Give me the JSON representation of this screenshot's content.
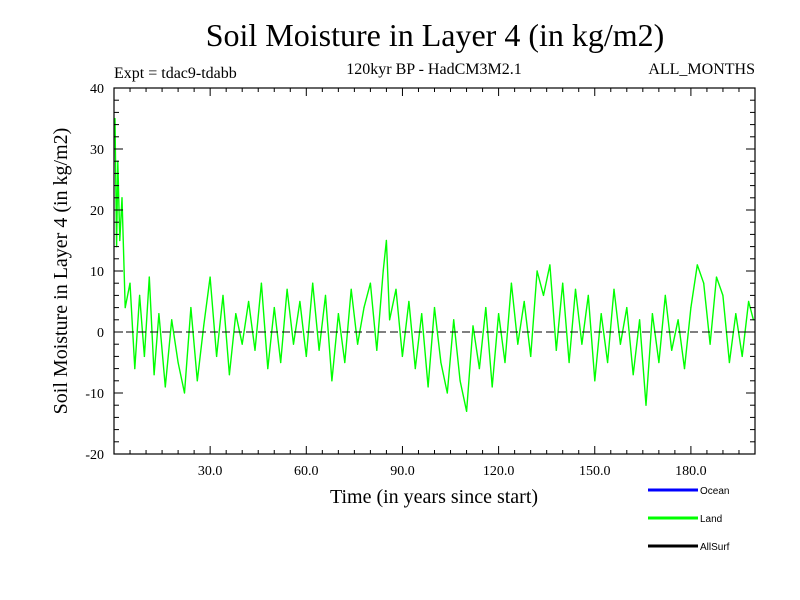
{
  "chart_data": {
    "type": "line",
    "title": "Soil Moisture in Layer 4 (in kg/m2)",
    "subtitle_left": "Expt = tdac9-tdabb",
    "subtitle_center": "120kyr BP - HadCM3M2.1",
    "subtitle_right": "ALL_MONTHS",
    "xlabel": "Time (in years since start)",
    "ylabel": "Soil Moisture in Layer 4 (in kg/m2)",
    "xlim": [
      0,
      200
    ],
    "ylim": [
      -20,
      40
    ],
    "x_ticks": [
      30,
      60,
      90,
      120,
      150,
      180
    ],
    "x_tick_labels": [
      "30.0",
      "60.0",
      "90.0",
      "120.0",
      "150.0",
      "180.0"
    ],
    "y_ticks": [
      -20,
      -10,
      0,
      10,
      20,
      30,
      40
    ],
    "y_tick_labels": [
      "-20",
      "-10",
      "0",
      "10",
      "20",
      "30",
      "40"
    ],
    "zero_line": "dashed",
    "legend": [
      {
        "name": "Ocean",
        "color": "#0000ff"
      },
      {
        "name": "Land",
        "color": "#00ff00"
      },
      {
        "name": "AllSurf",
        "color": "#000000"
      }
    ],
    "legend_position": "bottom-right",
    "series": [
      {
        "name": "Land",
        "color": "#00ff00",
        "x": [
          0.3,
          0.8,
          1.2,
          1.8,
          2.5,
          3.5,
          5,
          6.5,
          8,
          9.5,
          11,
          12.5,
          14,
          16,
          18,
          20,
          22,
          24,
          26,
          28,
          30,
          32,
          34,
          36,
          38,
          40,
          42,
          44,
          46,
          48,
          50,
          52,
          54,
          56,
          58,
          60,
          62,
          64,
          66,
          68,
          70,
          72,
          74,
          76,
          78,
          80,
          82,
          84,
          85,
          86,
          88,
          90,
          92,
          94,
          96,
          98,
          100,
          102,
          104,
          106,
          108,
          110,
          112,
          114,
          116,
          118,
          120,
          122,
          124,
          126,
          128,
          130,
          132,
          134,
          136,
          138,
          140,
          142,
          144,
          146,
          148,
          150,
          152,
          154,
          156,
          158,
          160,
          162,
          164,
          166,
          168,
          170,
          172,
          174,
          176,
          178,
          180,
          182,
          184,
          186,
          188,
          190,
          192,
          194,
          196,
          198,
          199.5
        ],
        "values": [
          35,
          14,
          28,
          15,
          22,
          4,
          8,
          -6,
          6,
          -4,
          9,
          -7,
          3,
          -9,
          2,
          -5,
          -10,
          4,
          -8,
          1,
          9,
          -4,
          6,
          -7,
          3,
          -2,
          5,
          -3,
          8,
          -6,
          4,
          -5,
          7,
          -2,
          5,
          -4,
          8,
          -3,
          6,
          -8,
          3,
          -5,
          7,
          -2,
          4,
          8,
          -3,
          10,
          15,
          2,
          7,
          -4,
          5,
          -6,
          3,
          -9,
          4,
          -5,
          -10,
          2,
          -8,
          -13,
          1,
          -6,
          4,
          -9,
          3,
          -5,
          8,
          -2,
          5,
          -4,
          10,
          6,
          11,
          -3,
          8,
          -5,
          7,
          -2,
          6,
          -8,
          3,
          -5,
          7,
          -2,
          4,
          -7,
          2,
          -12,
          3,
          -5,
          6,
          -3,
          2,
          -6,
          4,
          11,
          8,
          -2,
          9,
          6,
          -5,
          3,
          -4,
          5,
          2
        ]
      }
    ]
  }
}
